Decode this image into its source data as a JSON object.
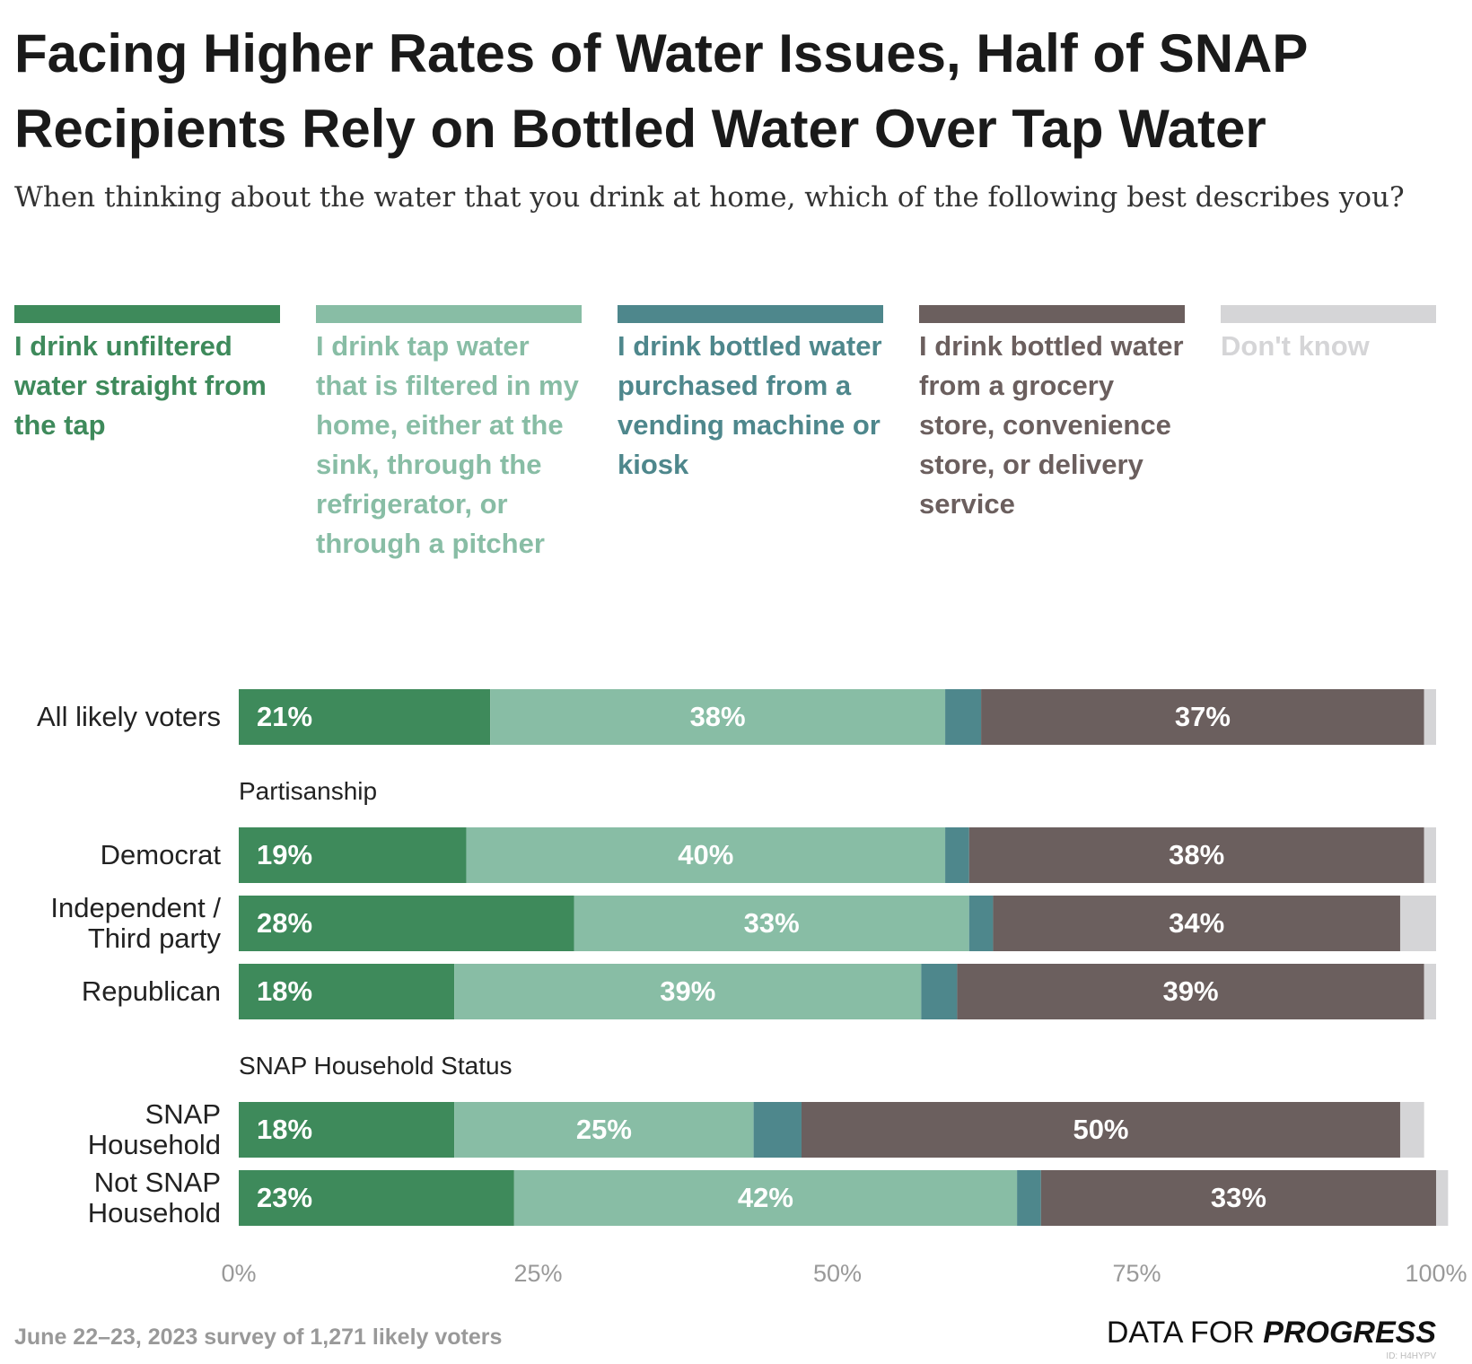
{
  "chart_data": {
    "type": "stacked-bar-horizontal",
    "title": "Facing Higher Rates of Water Issues, Half of SNAP Recipients Rely on Bottled Water Over Tap Water",
    "subtitle": "When thinking about the water that you drink at home, which of the following best describes you?",
    "categories": [
      "All likely voters",
      "Democrat",
      "Independent / Third party",
      "Republican",
      "SNAP Household",
      "Not SNAP Household"
    ],
    "group_titles": [
      "Partisanship",
      "SNAP Household Status"
    ],
    "series": [
      {
        "name": "I drink unfiltered water straight from the tap",
        "color": "#3e8a5b",
        "values": [
          21,
          19,
          28,
          18,
          18,
          23
        ],
        "value_labels": [
          "21%",
          "19%",
          "28%",
          "18%",
          "18%",
          "23%"
        ]
      },
      {
        "name": "I drink tap water that is filtered in my home, either at the sink, through the refrigerator, or through a pitcher",
        "color": "#88bda5",
        "values": [
          38,
          40,
          33,
          39,
          25,
          42
        ],
        "value_labels": [
          "38%",
          "40%",
          "33%",
          "39%",
          "25%",
          "42%"
        ]
      },
      {
        "name": "I drink bottled water purchased from a vending machine or kiosk",
        "color": "#4e878c",
        "values": [
          3,
          2,
          2,
          3,
          4,
          2
        ]
      },
      {
        "name": "I drink bottled water from a grocery store, convenience store, or delivery service",
        "color": "#6b5f5e",
        "values": [
          37,
          38,
          34,
          39,
          50,
          33
        ],
        "value_labels": [
          "37%",
          "38%",
          "34%",
          "39%",
          "50%",
          "33%"
        ]
      },
      {
        "name": "Don't know",
        "color": "#d5d5d7",
        "values": [
          1,
          1,
          3,
          1,
          2,
          1
        ]
      }
    ],
    "xlim": [
      0,
      100
    ],
    "xticks": [
      {
        "value": 0,
        "label": "0%"
      },
      {
        "value": 25,
        "label": "25%"
      },
      {
        "value": 50,
        "label": "50%"
      },
      {
        "value": 75,
        "label": "75%"
      },
      {
        "value": 100,
        "label": "100%"
      }
    ],
    "grid": false,
    "note": "June 22–23, 2023 survey of 1,271 likely voters",
    "logo": [
      "DATA FOR",
      "PROGRESS"
    ],
    "id_label": "ID: H4HYPV"
  }
}
